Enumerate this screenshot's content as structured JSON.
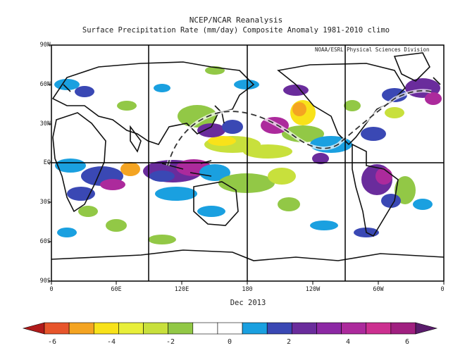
{
  "title": "NCEP/NCAR Reanalysis",
  "subtitle": "Surface Precipitation Rate (mm/day) Composite Anomaly 1981-2010 climo",
  "credit": "NOAA/ESRL Physical Sciences Division",
  "date_label": "Dec 2013",
  "lat_labels": [
    "90N",
    "60N",
    "30N",
    "EQ",
    "30S",
    "60S",
    "90S"
  ],
  "lon_labels": [
    "0",
    "60E",
    "120E",
    "180",
    "120W",
    "60W",
    "0"
  ],
  "colorbar": {
    "colors": [
      "#b01a1a",
      "#e7552b",
      "#f4a422",
      "#f8e21a",
      "#e8ef3a",
      "#c8e03c",
      "#92c846",
      "#ffffff",
      "#ffffff",
      "#1aa0e0",
      "#3a48b4",
      "#6a2c9c",
      "#8c28a4",
      "#ac2a9c",
      "#cc3090",
      "#a02080",
      "#5a1c6c"
    ],
    "tick_labels": [
      "-6",
      "-4",
      "-2",
      "0",
      "2",
      "4",
      "6"
    ]
  },
  "anomaly_colors": {
    "wet": [
      "#1aa0e0",
      "#3a48b4",
      "#6a2c9c",
      "#ac2a9c"
    ],
    "dry": [
      "#92c846",
      "#c8e03c",
      "#f8e21a",
      "#f4a422"
    ]
  }
}
